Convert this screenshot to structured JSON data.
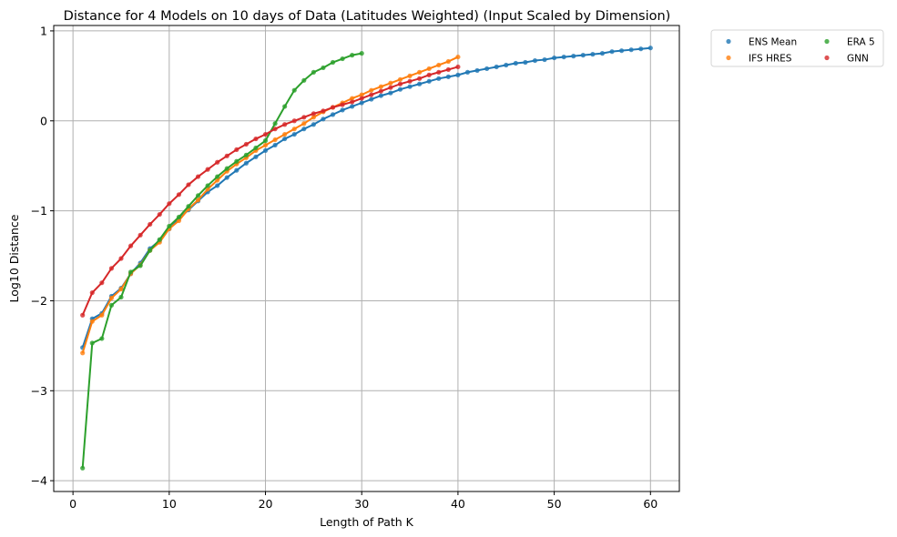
{
  "chart_data": {
    "type": "line",
    "title": "Distance for 4 Models on 10 days of Data (Latitudes Weighted) (Input Scaled by Dimension)",
    "xlabel": "Length of Path K",
    "ylabel": "Log10 Distance",
    "xlim": [
      -2,
      63
    ],
    "ylim": [
      -4.12,
      1.06
    ],
    "xticks": [
      0,
      10,
      20,
      30,
      40,
      50,
      60
    ],
    "yticks": [
      -4,
      -3,
      -2,
      -1,
      0,
      1
    ],
    "xtick_labels": [
      "0",
      "10",
      "20",
      "30",
      "40",
      "50",
      "60"
    ],
    "ytick_labels": [
      "−4",
      "−3",
      "−2",
      "−1",
      "0",
      "1"
    ],
    "grid": true,
    "legend_position": "outside-top-right",
    "legend_columns": 2,
    "markers": "points with connecting lines",
    "series": [
      {
        "name": "ENS Mean",
        "color": "#1f77b4",
        "x": [
          1,
          2,
          3,
          4,
          5,
          6,
          7,
          8,
          9,
          10,
          11,
          12,
          13,
          14,
          15,
          16,
          17,
          18,
          19,
          20,
          21,
          22,
          23,
          24,
          25,
          26,
          27,
          28,
          29,
          30,
          31,
          32,
          33,
          34,
          35,
          36,
          37,
          38,
          39,
          40,
          41,
          42,
          43,
          44,
          45,
          46,
          47,
          48,
          49,
          50,
          51,
          52,
          53,
          54,
          55,
          56,
          57,
          58,
          59,
          60
        ],
        "values": [
          -2.52,
          -2.2,
          -2.14,
          -1.95,
          -1.86,
          -1.7,
          -1.58,
          -1.42,
          -1.33,
          -1.2,
          -1.09,
          -0.99,
          -0.89,
          -0.79,
          -0.72,
          -0.63,
          -0.55,
          -0.47,
          -0.4,
          -0.33,
          -0.27,
          -0.2,
          -0.15,
          -0.09,
          -0.04,
          0.02,
          0.07,
          0.12,
          0.16,
          0.2,
          0.24,
          0.28,
          0.31,
          0.35,
          0.38,
          0.41,
          0.44,
          0.47,
          0.49,
          0.51,
          0.54,
          0.56,
          0.58,
          0.6,
          0.62,
          0.64,
          0.65,
          0.67,
          0.68,
          0.7,
          0.71,
          0.72,
          0.73,
          0.74,
          0.75,
          0.77,
          0.78,
          0.79,
          0.8,
          0.81
        ]
      },
      {
        "name": "IFS HRES",
        "color": "#ff7f0e",
        "x": [
          1,
          2,
          3,
          4,
          5,
          6,
          7,
          8,
          9,
          10,
          11,
          12,
          13,
          14,
          15,
          16,
          17,
          18,
          19,
          20,
          21,
          22,
          23,
          24,
          25,
          26,
          27,
          28,
          29,
          30,
          31,
          32,
          33,
          34,
          35,
          36,
          37,
          38,
          39,
          40
        ],
        "values": [
          -2.58,
          -2.23,
          -2.16,
          -1.97,
          -1.87,
          -1.7,
          -1.6,
          -1.44,
          -1.35,
          -1.2,
          -1.11,
          -0.98,
          -0.88,
          -0.76,
          -0.66,
          -0.56,
          -0.48,
          -0.41,
          -0.33,
          -0.27,
          -0.21,
          -0.15,
          -0.09,
          -0.03,
          0.04,
          0.1,
          0.15,
          0.2,
          0.25,
          0.29,
          0.34,
          0.38,
          0.42,
          0.46,
          0.5,
          0.54,
          0.58,
          0.62,
          0.66,
          0.71
        ]
      },
      {
        "name": "ERA 5",
        "color": "#2ca02c",
        "x": [
          1,
          2,
          3,
          4,
          5,
          6,
          7,
          8,
          9,
          10,
          11,
          12,
          13,
          14,
          15,
          16,
          17,
          18,
          19,
          20,
          21,
          22,
          23,
          24,
          25,
          26,
          27,
          28,
          29,
          30
        ],
        "values": [
          -3.86,
          -2.47,
          -2.42,
          -2.05,
          -1.96,
          -1.68,
          -1.61,
          -1.44,
          -1.32,
          -1.17,
          -1.07,
          -0.95,
          -0.83,
          -0.72,
          -0.62,
          -0.53,
          -0.45,
          -0.38,
          -0.3,
          -0.22,
          -0.03,
          0.16,
          0.34,
          0.45,
          0.54,
          0.59,
          0.65,
          0.69,
          0.73,
          0.75
        ]
      },
      {
        "name": "GNN",
        "color": "#d62728",
        "x": [
          1,
          2,
          3,
          4,
          5,
          6,
          7,
          8,
          9,
          10,
          11,
          12,
          13,
          14,
          15,
          16,
          17,
          18,
          19,
          20,
          21,
          22,
          23,
          24,
          25,
          26,
          27,
          28,
          29,
          30,
          31,
          32,
          33,
          34,
          35,
          36,
          37,
          38,
          39,
          40
        ],
        "values": [
          -2.16,
          -1.91,
          -1.8,
          -1.64,
          -1.53,
          -1.39,
          -1.27,
          -1.15,
          -1.04,
          -0.92,
          -0.82,
          -0.71,
          -0.62,
          -0.54,
          -0.46,
          -0.39,
          -0.32,
          -0.26,
          -0.2,
          -0.15,
          -0.09,
          -0.04,
          0.0,
          0.04,
          0.08,
          0.11,
          0.15,
          0.18,
          0.21,
          0.25,
          0.29,
          0.33,
          0.37,
          0.41,
          0.44,
          0.47,
          0.51,
          0.54,
          0.57,
          0.6
        ]
      }
    ]
  }
}
